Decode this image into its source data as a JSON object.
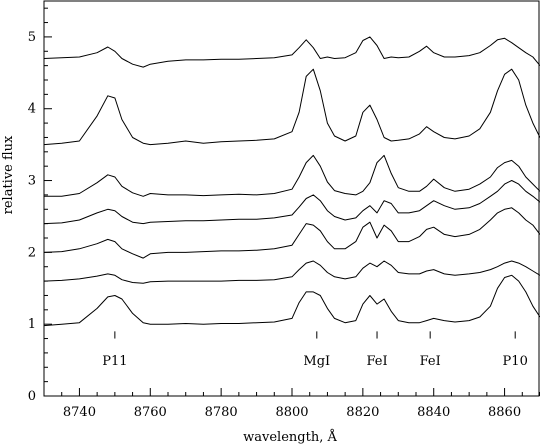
{
  "chart_data": {
    "type": "line",
    "title": "",
    "xlabel": "wavelength, Å",
    "ylabel": "relative flux",
    "xlim": [
      8730,
      8870
    ],
    "ylim": [
      0,
      5.5
    ],
    "x_ticks": [
      8740,
      8760,
      8780,
      8800,
      8820,
      8840,
      8860
    ],
    "y_ticks": [
      0,
      1,
      2,
      3,
      4,
      5
    ],
    "grid": false,
    "legend": "none",
    "line_color": "#000000",
    "features": [
      {
        "label": "P11",
        "wavelength": 8750,
        "label_y": 0.5,
        "mark_from": 0.8,
        "mark_to": 0.9
      },
      {
        "label": "MgI",
        "wavelength": 8807,
        "label_y": 0.5,
        "mark_from": 0.8,
        "mark_to": 0.9
      },
      {
        "label": "FeI",
        "wavelength": 8824,
        "label_y": 0.5,
        "mark_from": 0.8,
        "mark_to": 0.9
      },
      {
        "label": "FeI",
        "wavelength": 8839,
        "label_y": 0.5,
        "mark_from": 0.8,
        "mark_to": 0.9
      },
      {
        "label": "P10",
        "wavelength": 8863,
        "label_y": 0.5,
        "mark_from": 0.8,
        "mark_to": 0.9
      }
    ],
    "x": [
      8730,
      8735,
      8740,
      8745,
      8748,
      8750,
      8752,
      8755,
      8758,
      8760,
      8765,
      8770,
      8775,
      8780,
      8785,
      8790,
      8795,
      8800,
      8802,
      8804,
      8806,
      8808,
      8810,
      8812,
      8815,
      8818,
      8820,
      8822,
      8824,
      8826,
      8828,
      8830,
      8833,
      8836,
      8838,
      8840,
      8843,
      8846,
      8850,
      8853,
      8856,
      8858,
      8860,
      8862,
      8864,
      8866,
      8868,
      8870
    ],
    "series": [
      {
        "values": [
          4.7,
          4.71,
          4.72,
          4.78,
          4.86,
          4.8,
          4.7,
          4.62,
          4.58,
          4.62,
          4.66,
          4.68,
          4.68,
          4.69,
          4.69,
          4.7,
          4.71,
          4.75,
          4.85,
          4.96,
          4.85,
          4.7,
          4.72,
          4.7,
          4.71,
          4.78,
          4.95,
          5.0,
          4.88,
          4.7,
          4.72,
          4.71,
          4.72,
          4.8,
          4.87,
          4.78,
          4.72,
          4.72,
          4.74,
          4.78,
          4.88,
          4.96,
          4.98,
          4.92,
          4.85,
          4.78,
          4.72,
          4.6
        ]
      },
      {
        "values": [
          3.5,
          3.52,
          3.55,
          3.9,
          4.18,
          4.15,
          3.85,
          3.6,
          3.52,
          3.5,
          3.52,
          3.55,
          3.52,
          3.54,
          3.55,
          3.56,
          3.58,
          3.68,
          3.95,
          4.45,
          4.55,
          4.25,
          3.8,
          3.62,
          3.55,
          3.62,
          3.95,
          4.05,
          3.85,
          3.6,
          3.55,
          3.56,
          3.58,
          3.65,
          3.75,
          3.68,
          3.6,
          3.58,
          3.62,
          3.72,
          3.95,
          4.25,
          4.48,
          4.55,
          4.4,
          4.05,
          3.8,
          3.6
        ]
      },
      {
        "values": [
          2.78,
          2.78,
          2.82,
          2.97,
          3.08,
          3.05,
          2.92,
          2.83,
          2.78,
          2.82,
          2.8,
          2.8,
          2.79,
          2.8,
          2.81,
          2.8,
          2.82,
          2.88,
          3.05,
          3.25,
          3.35,
          3.2,
          2.98,
          2.86,
          2.82,
          2.8,
          2.85,
          2.97,
          3.25,
          3.35,
          3.1,
          2.9,
          2.85,
          2.85,
          2.92,
          3.02,
          2.9,
          2.85,
          2.88,
          2.95,
          3.05,
          3.18,
          3.25,
          3.28,
          3.2,
          3.05,
          2.95,
          2.85
        ]
      },
      {
        "values": [
          2.4,
          2.41,
          2.45,
          2.55,
          2.6,
          2.58,
          2.5,
          2.42,
          2.4,
          2.42,
          2.43,
          2.44,
          2.44,
          2.45,
          2.46,
          2.46,
          2.48,
          2.52,
          2.63,
          2.75,
          2.8,
          2.72,
          2.58,
          2.5,
          2.45,
          2.48,
          2.58,
          2.65,
          2.55,
          2.72,
          2.68,
          2.55,
          2.55,
          2.58,
          2.65,
          2.72,
          2.65,
          2.6,
          2.62,
          2.68,
          2.78,
          2.85,
          2.95,
          3.0,
          2.95,
          2.85,
          2.78,
          2.7
        ]
      },
      {
        "values": [
          2.0,
          2.01,
          2.05,
          2.12,
          2.18,
          2.15,
          2.05,
          1.98,
          1.92,
          1.98,
          2.0,
          2.0,
          2.01,
          2.02,
          2.02,
          2.03,
          2.05,
          2.1,
          2.25,
          2.4,
          2.38,
          2.3,
          2.15,
          2.05,
          2.05,
          2.15,
          2.35,
          2.42,
          2.2,
          2.38,
          2.3,
          2.15,
          2.15,
          2.22,
          2.32,
          2.35,
          2.25,
          2.22,
          2.25,
          2.32,
          2.45,
          2.55,
          2.6,
          2.62,
          2.55,
          2.45,
          2.38,
          2.25
        ]
      },
      {
        "values": [
          1.6,
          1.61,
          1.63,
          1.67,
          1.7,
          1.68,
          1.62,
          1.58,
          1.57,
          1.59,
          1.6,
          1.6,
          1.6,
          1.6,
          1.61,
          1.61,
          1.62,
          1.66,
          1.76,
          1.85,
          1.88,
          1.82,
          1.72,
          1.66,
          1.63,
          1.66,
          1.78,
          1.85,
          1.8,
          1.88,
          1.82,
          1.72,
          1.7,
          1.7,
          1.74,
          1.76,
          1.7,
          1.68,
          1.7,
          1.72,
          1.76,
          1.8,
          1.85,
          1.88,
          1.85,
          1.8,
          1.74,
          1.68
        ]
      },
      {
        "values": [
          0.98,
          1.0,
          1.02,
          1.22,
          1.38,
          1.4,
          1.35,
          1.15,
          1.02,
          1.0,
          1.0,
          1.01,
          1.0,
          1.01,
          1.01,
          1.02,
          1.03,
          1.08,
          1.3,
          1.45,
          1.45,
          1.4,
          1.22,
          1.08,
          1.02,
          1.05,
          1.28,
          1.4,
          1.28,
          1.35,
          1.18,
          1.05,
          1.02,
          1.02,
          1.05,
          1.08,
          1.05,
          1.03,
          1.05,
          1.1,
          1.25,
          1.5,
          1.65,
          1.68,
          1.6,
          1.45,
          1.25,
          1.1
        ]
      }
    ]
  }
}
